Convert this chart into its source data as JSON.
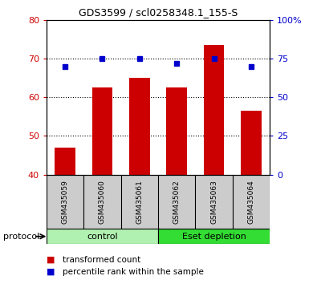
{
  "title": "GDS3599 / scl0258348.1_155-S",
  "samples": [
    "GSM435059",
    "GSM435060",
    "GSM435061",
    "GSM435062",
    "GSM435063",
    "GSM435064"
  ],
  "transformed_count": [
    47.0,
    62.5,
    65.0,
    62.5,
    73.5,
    56.5
  ],
  "percentile_rank": [
    70.0,
    75.0,
    75.0,
    72.0,
    75.0,
    70.0
  ],
  "bar_color": "#cc0000",
  "dot_color": "#0000cc",
  "left_ylim": [
    40,
    80
  ],
  "right_ylim": [
    0,
    100
  ],
  "left_yticks": [
    40,
    50,
    60,
    70,
    80
  ],
  "right_yticks": [
    0,
    25,
    50,
    75,
    100
  ],
  "right_yticklabels": [
    "0",
    "25",
    "50",
    "75",
    "100%"
  ],
  "grid_values": [
    50,
    60,
    70
  ],
  "control_group": [
    0,
    1,
    2
  ],
  "eset_group": [
    3,
    4,
    5
  ],
  "control_label": "control",
  "eset_label": "Eset depletion",
  "control_color": "#b0f0b0",
  "eset_color": "#33dd33",
  "protocol_label": "protocol",
  "legend_bar_label": "transformed count",
  "legend_dot_label": "percentile rank within the sample",
  "tick_color_left": "#cc0000",
  "tick_color_right": "#0000cc",
  "background_color": "#ffffff",
  "sample_box_color": "#cccccc",
  "title_fontsize": 9
}
